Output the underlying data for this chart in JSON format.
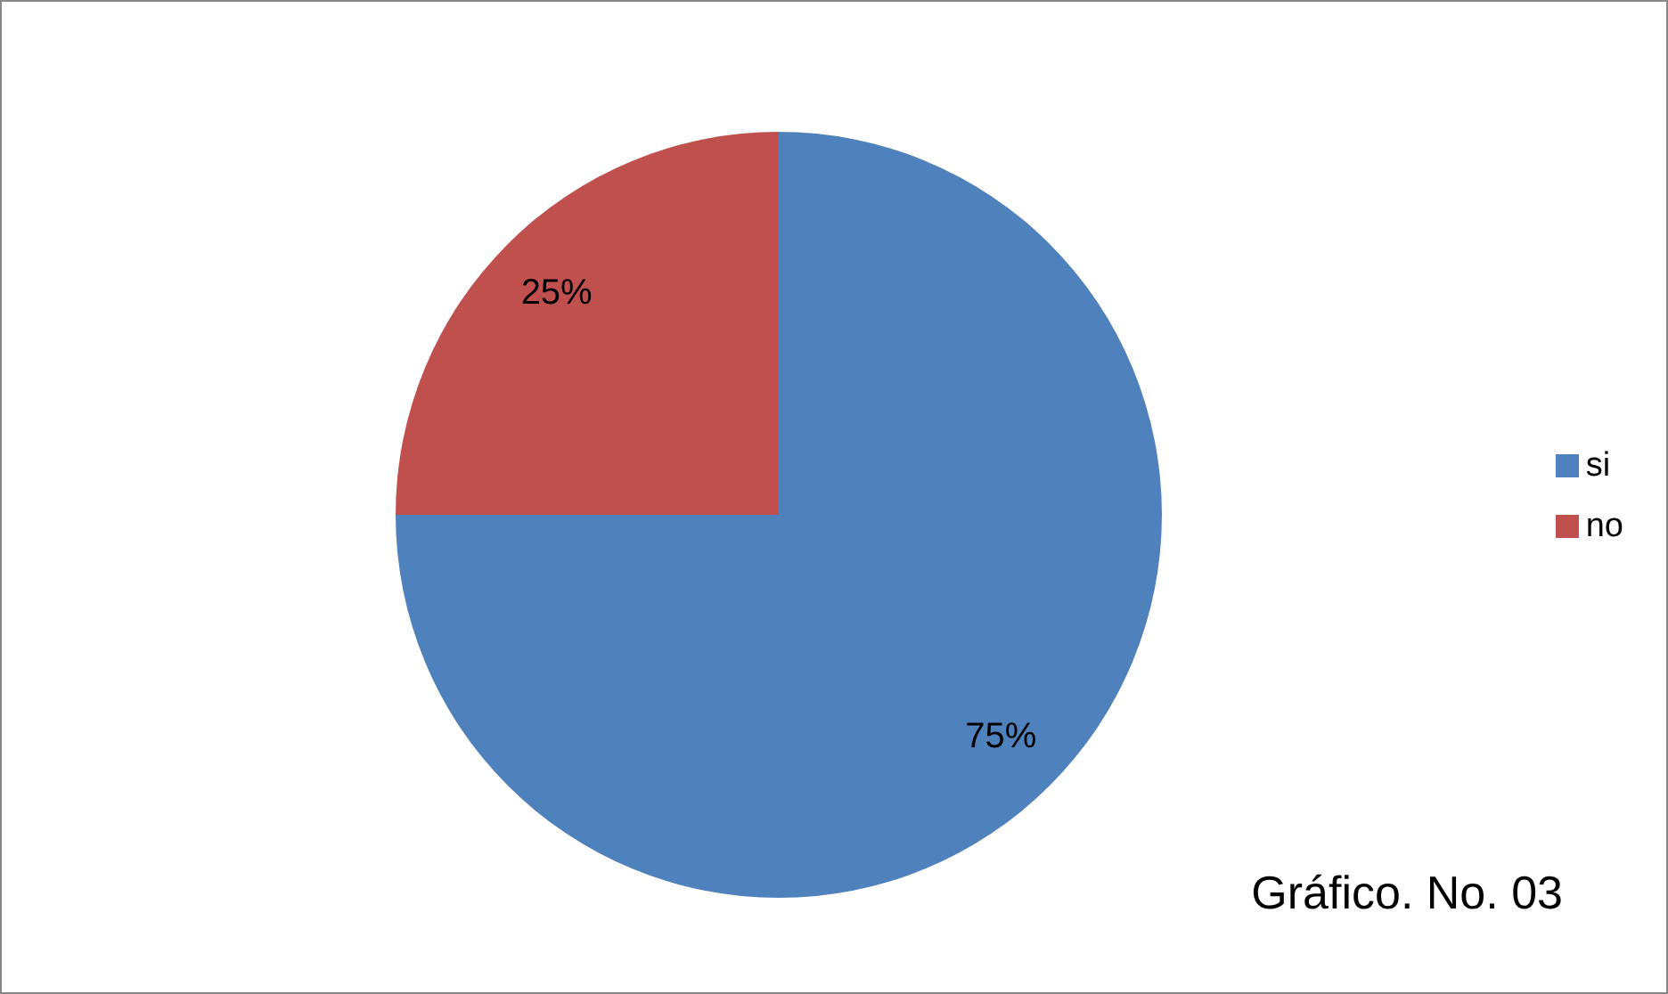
{
  "chart_data": {
    "type": "pie",
    "categories": [
      "si",
      "no"
    ],
    "values": [
      75,
      25
    ],
    "colors": [
      "#4f81bd",
      "#c0504d"
    ],
    "value_labels": [
      "75%",
      "25%"
    ],
    "legend": "right",
    "annotations": [
      "Gráfico. No. 03"
    ]
  }
}
